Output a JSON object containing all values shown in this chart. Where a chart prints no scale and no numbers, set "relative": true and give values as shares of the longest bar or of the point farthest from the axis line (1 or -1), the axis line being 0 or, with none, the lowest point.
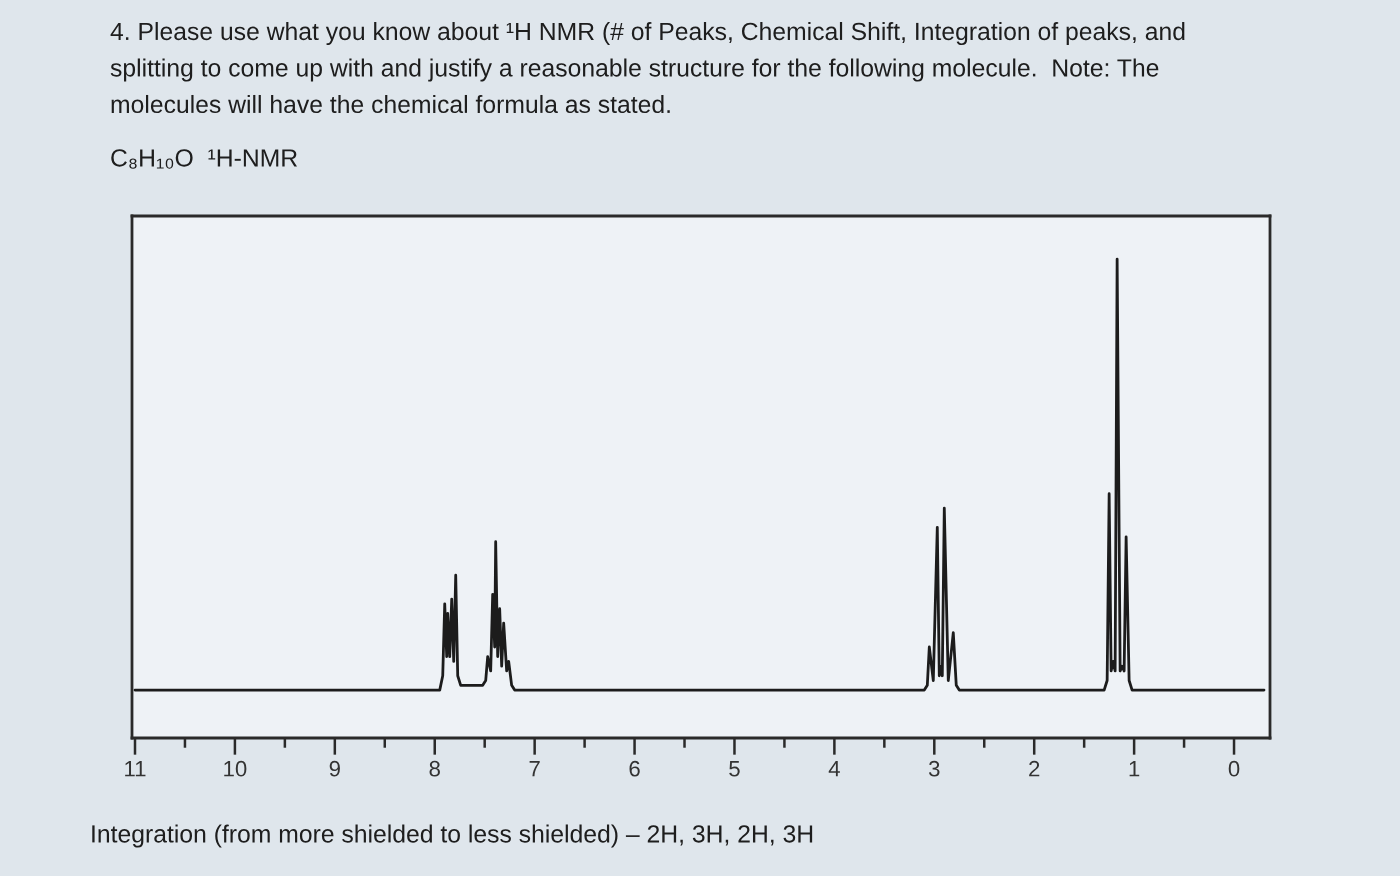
{
  "chart_data": {
    "type": "line",
    "title": "4. Please use what you know about ¹H NMR (# of Peaks, Chemical Shift, Integration of peaks, and\nsplitting to come up with and justify a reasonable structure for the following molecule.  Note: The\nmolecules will have the chemical formula as stated.",
    "subtitle": "C₈H₁₀O  ¹H-NMR",
    "annotations": [
      "Integration (from more shielded to less shielded) – 2H, 3H, 2H, 3H"
    ],
    "relative": true,
    "x": [
      11.0,
      7.95,
      7.92,
      7.9,
      7.88,
      7.87,
      7.85,
      7.83,
      7.81,
      7.79,
      7.77,
      7.74,
      7.52,
      7.49,
      7.47,
      7.44,
      7.42,
      7.4,
      7.39,
      7.37,
      7.35,
      7.33,
      7.31,
      7.28,
      7.26,
      7.23,
      7.2,
      3.1,
      3.07,
      3.05,
      3.01,
      2.97,
      2.95,
      2.93,
      2.92,
      2.9,
      2.86,
      2.81,
      2.78,
      2.75,
      1.3,
      1.27,
      1.25,
      1.23,
      1.21,
      1.19,
      1.17,
      1.14,
      1.12,
      1.1,
      1.08,
      1.05,
      1.02,
      -0.3
    ],
    "series": [
      {
        "color": "#1c1c1c",
        "values": [
          0.1,
          0.1,
          0.13,
          0.28,
          0.17,
          0.26,
          0.17,
          0.29,
          0.16,
          0.34,
          0.13,
          0.11,
          0.11,
          0.12,
          0.17,
          0.14,
          0.3,
          0.19,
          0.41,
          0.17,
          0.27,
          0.15,
          0.24,
          0.14,
          0.16,
          0.11,
          0.1,
          0.1,
          0.11,
          0.19,
          0.12,
          0.44,
          0.13,
          0.15,
          0.13,
          0.48,
          0.12,
          0.22,
          0.11,
          0.1,
          0.1,
          0.12,
          0.51,
          0.14,
          0.16,
          0.14,
          1.0,
          0.14,
          0.15,
          0.14,
          0.42,
          0.12,
          0.1,
          0.1
        ]
      }
    ],
    "xlim": [
      11.03,
      -0.36
    ],
    "xticks": [
      11,
      {
        "value": 10.5,
        "label": null
      },
      10,
      {
        "value": 9.5,
        "label": null
      },
      9,
      {
        "value": 8.5,
        "label": null
      },
      8,
      {
        "value": 7.5,
        "label": null
      },
      7,
      {
        "value": 6.5,
        "label": null
      },
      6,
      {
        "value": 5.5,
        "label": null
      },
      5,
      {
        "value": 4.5,
        "label": null
      },
      4,
      {
        "value": 3.5,
        "label": null
      },
      3,
      {
        "value": 2.5,
        "label": null
      },
      2,
      {
        "value": 1.5,
        "label": null
      },
      1,
      {
        "value": 0.5,
        "label": null
      },
      0
    ],
    "tick_labels": "x"
  }
}
